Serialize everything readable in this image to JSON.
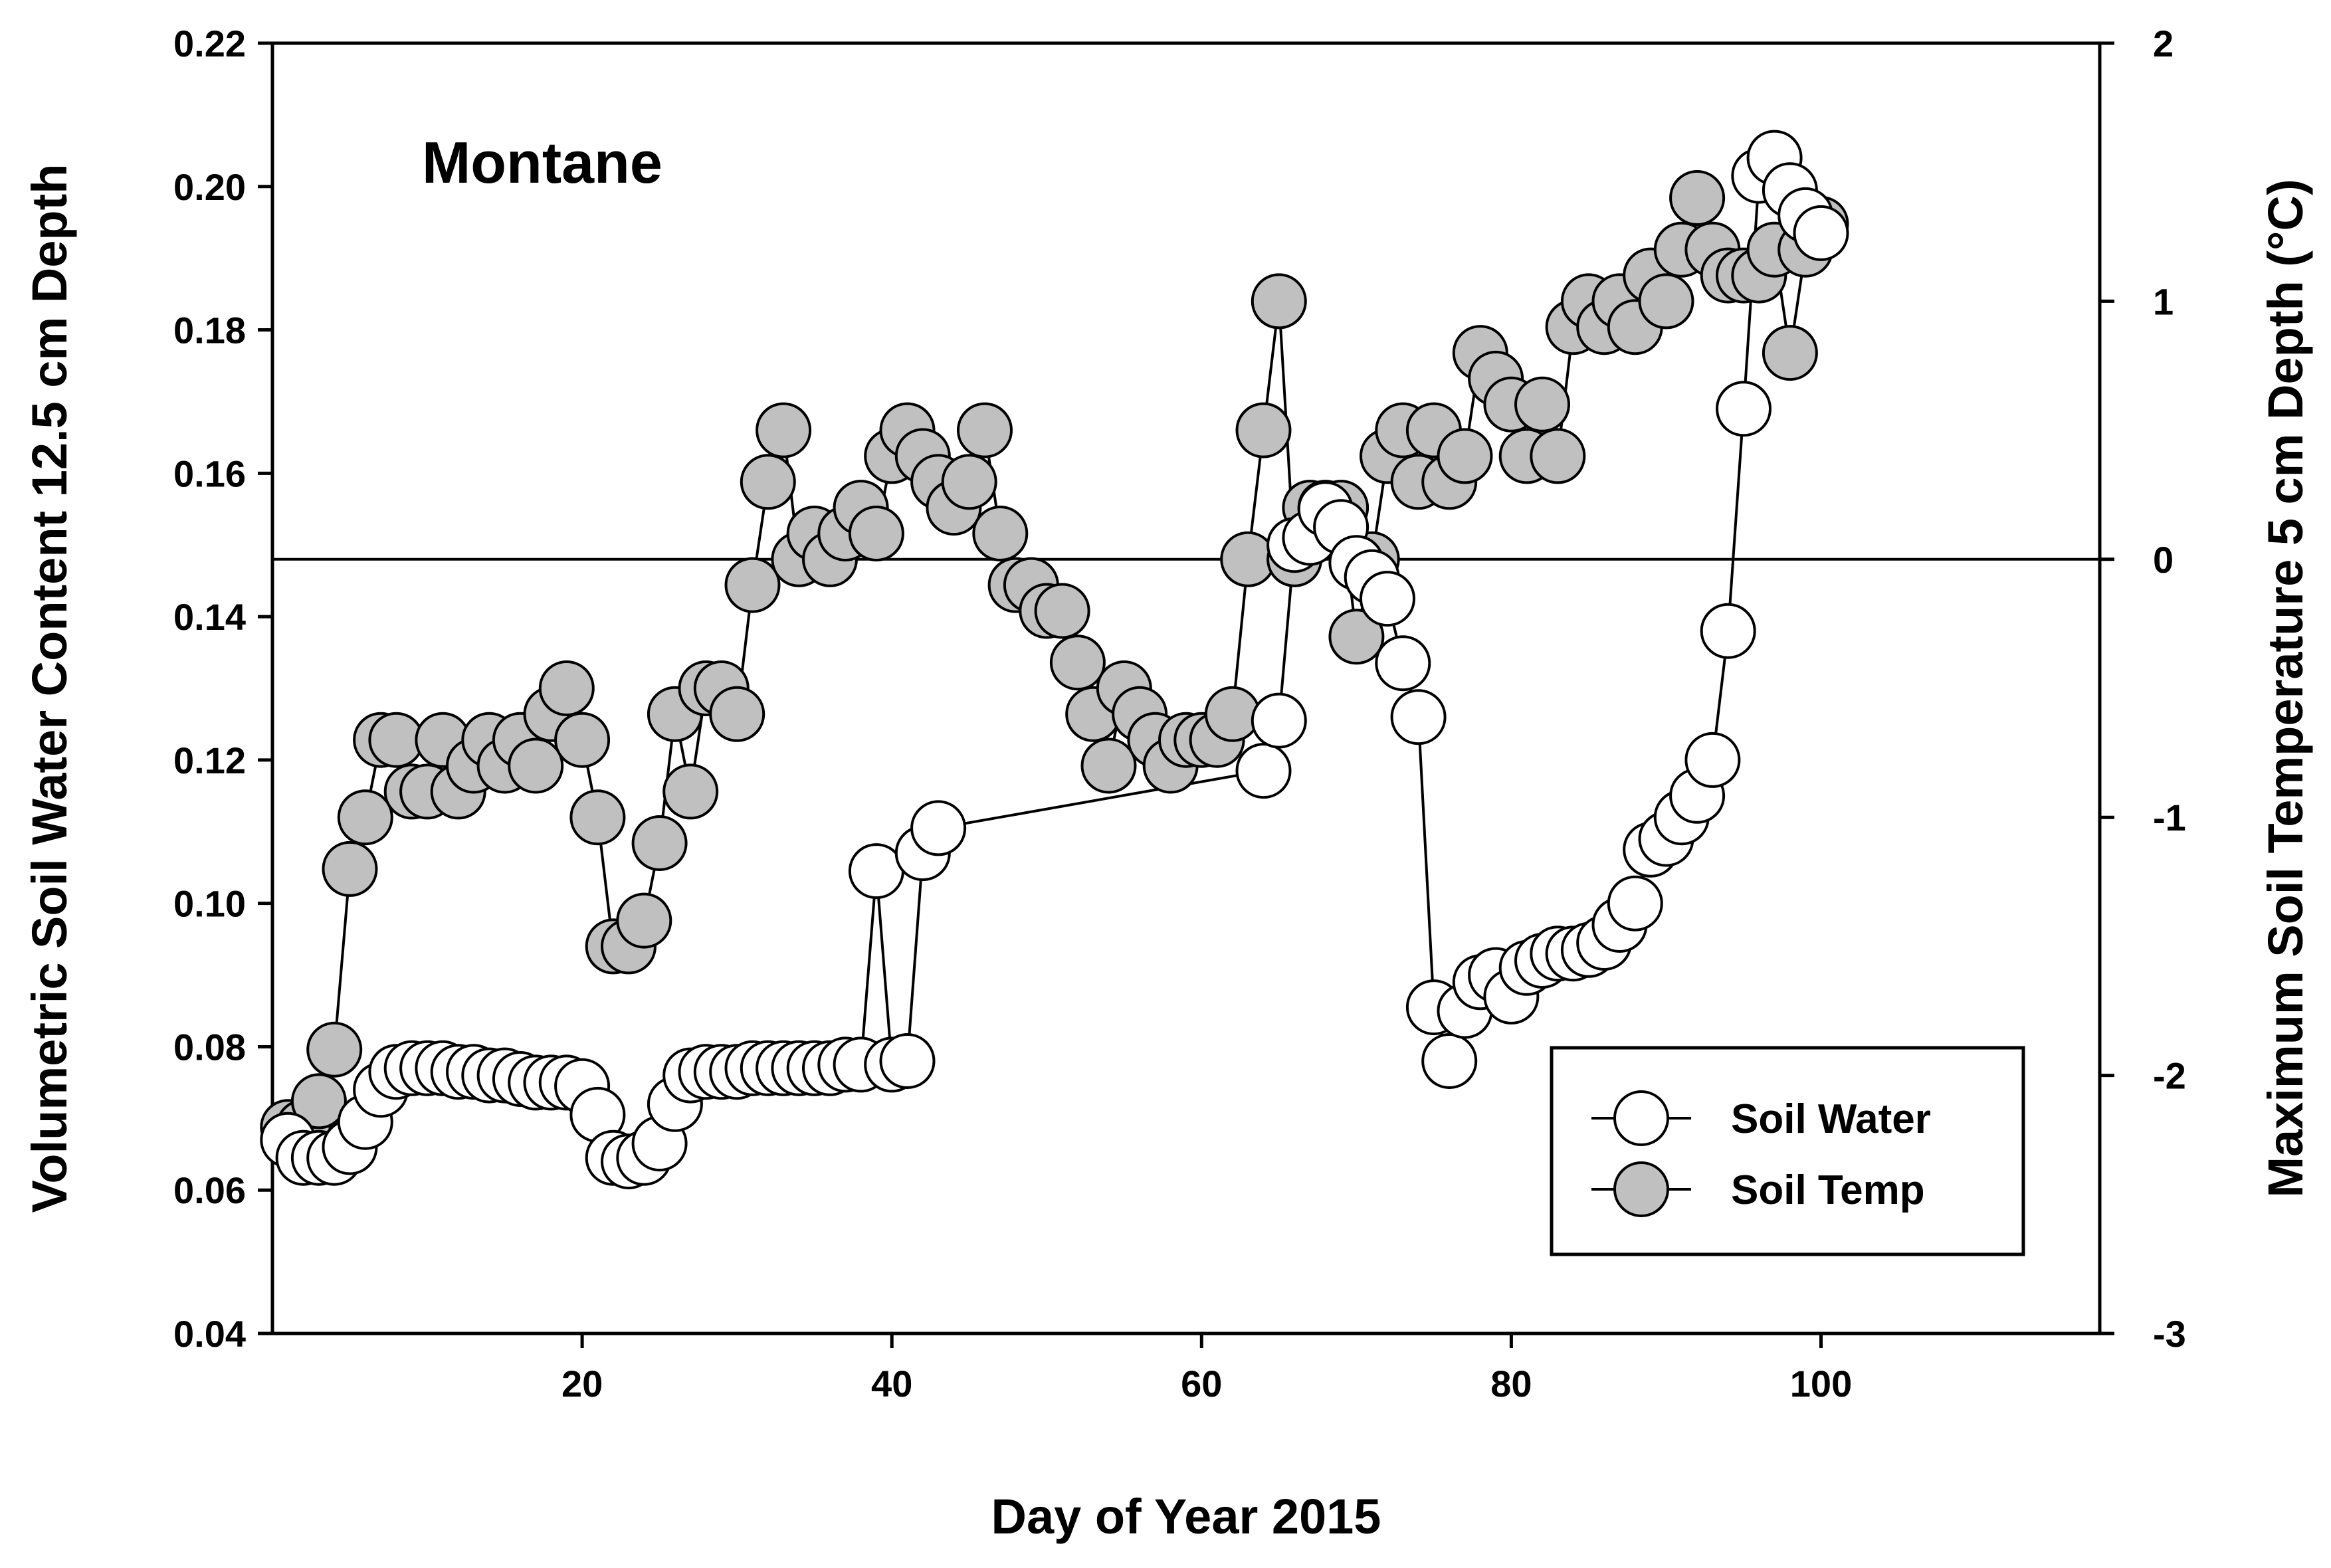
{
  "chart_data": {
    "type": "line",
    "panel_label": "Montane",
    "xlabel": "Day of Year 2015",
    "ylabel_left": "Volumetric Soil Water Content 12.5 cm Depth",
    "ylabel_right": "Maximum Soil Temperature 5 cm Depth (°C)",
    "xlim": [
      0,
      118
    ],
    "ylim_left": [
      0.04,
      0.22
    ],
    "ylim_right": [
      -3,
      2
    ],
    "x_ticks": [
      20,
      40,
      60,
      80,
      100
    ],
    "x_tick_labels": [
      "20",
      "40",
      "60",
      "80",
      "100"
    ],
    "y_left_ticks": [
      0.04,
      0.06,
      0.08,
      0.1,
      0.12,
      0.14,
      0.16,
      0.18,
      0.2,
      0.22
    ],
    "y_left_tick_labels": [
      "0.04",
      "0.06",
      "0.08",
      "0.10",
      "0.12",
      "0.14",
      "0.16",
      "0.18",
      "0.20",
      "0.22"
    ],
    "y_right_ticks": [
      -3,
      -2,
      -1,
      0,
      1,
      2
    ],
    "y_right_tick_labels": [
      "-3",
      "-2",
      "-1",
      "0",
      "1",
      "2"
    ],
    "reference_line": {
      "axis": "right",
      "value": 0
    },
    "legend_position": "bottom-right",
    "series": [
      {
        "name": "Soil Water",
        "axis": "left",
        "marker_fill": "#ffffff",
        "x": [
          1,
          2,
          3,
          4,
          5,
          6,
          7,
          8,
          9,
          10,
          11,
          12,
          13,
          14,
          15,
          16,
          17,
          18,
          19,
          20,
          21,
          22,
          23,
          24,
          25,
          26,
          27,
          28,
          29,
          30,
          31,
          32,
          33,
          34,
          35,
          36,
          37,
          38,
          39,
          40,
          41,
          42,
          43,
          64,
          65,
          66,
          67,
          68,
          69,
          70,
          71,
          72,
          73,
          74,
          75,
          76,
          77,
          78,
          79,
          80,
          81,
          82,
          83,
          84,
          85,
          86,
          87,
          88,
          89,
          90,
          91,
          92,
          93,
          94,
          95,
          96,
          97,
          98,
          99,
          100
        ],
        "values": [
          0.067,
          0.0645,
          0.0645,
          0.0645,
          0.066,
          0.0695,
          0.074,
          0.0765,
          0.077,
          0.077,
          0.077,
          0.0765,
          0.0765,
          0.076,
          0.076,
          0.0755,
          0.075,
          0.075,
          0.075,
          0.0745,
          0.0705,
          0.0645,
          0.064,
          0.0645,
          0.0665,
          0.072,
          0.076,
          0.0765,
          0.0765,
          0.0765,
          0.077,
          0.077,
          0.077,
          0.077,
          0.077,
          0.077,
          0.0775,
          0.0775,
          0.1045,
          0.0775,
          0.078,
          0.107,
          0.1105,
          0.1185,
          0.1255,
          0.15,
          0.151,
          0.155,
          0.1525,
          0.1475,
          0.1455,
          0.1425,
          0.1335,
          0.126,
          0.0855,
          0.078,
          0.085,
          0.089,
          0.09,
          0.087,
          0.091,
          0.092,
          0.093,
          0.093,
          0.0935,
          0.0945,
          0.097,
          0.1,
          0.1075,
          0.109,
          0.112,
          0.115,
          0.12,
          0.138,
          0.169,
          0.2015,
          0.204,
          0.1995,
          0.196,
          0.1935
        ]
      },
      {
        "name": "Soil Temp",
        "axis": "right",
        "marker_fill": "#c0c0c0",
        "x": [
          1,
          2,
          3,
          4,
          5,
          6,
          7,
          8,
          9,
          10,
          11,
          12,
          13,
          14,
          15,
          16,
          17,
          18,
          19,
          20,
          21,
          22,
          23,
          24,
          25,
          26,
          27,
          28,
          29,
          30,
          31,
          32,
          33,
          34,
          35,
          36,
          37,
          38,
          39,
          40,
          41,
          42,
          43,
          44,
          45,
          46,
          47,
          48,
          49,
          50,
          51,
          52,
          53,
          54,
          55,
          56,
          57,
          58,
          59,
          60,
          61,
          62,
          63,
          64,
          65,
          66,
          67,
          68,
          69,
          70,
          71,
          72,
          73,
          74,
          75,
          76,
          77,
          78,
          79,
          80,
          81,
          82,
          83,
          84,
          85,
          86,
          87,
          88,
          89,
          90,
          91,
          92,
          93,
          94,
          95,
          96,
          97,
          98,
          99,
          100
        ],
        "values": [
          -2.2,
          -2.2,
          -2.1,
          -1.9,
          -1.2,
          -1.0,
          -0.7,
          -0.7,
          -0.9,
          -0.9,
          -0.7,
          -0.9,
          -0.8,
          -0.7,
          -0.8,
          -0.7,
          -0.8,
          -0.6,
          -0.5,
          -0.7,
          -1.0,
          -1.5,
          -1.5,
          -1.4,
          -1.1,
          -0.6,
          -0.9,
          -0.5,
          -0.5,
          -0.6,
          -0.1,
          0.3,
          0.5,
          0.0,
          0.1,
          0.0,
          0.1,
          0.2,
          0.1,
          0.4,
          0.5,
          0.4,
          0.3,
          0.2,
          0.3,
          0.5,
          0.1,
          -0.1,
          -0.1,
          -0.2,
          -0.2,
          -0.4,
          -0.6,
          -0.8,
          -0.5,
          -0.6,
          -0.7,
          -0.8,
          -0.7,
          -0.7,
          -0.7,
          -0.6,
          0.0,
          0.5,
          1.0,
          0.0,
          0.2,
          0.2,
          0.2,
          -0.3,
          0.0,
          0.4,
          0.5,
          0.3,
          0.5,
          0.3,
          0.4,
          0.8,
          0.7,
          0.6,
          0.4,
          0.6,
          0.4,
          0.9,
          1.0,
          0.9,
          1.0,
          0.9,
          1.1,
          1.0,
          1.2,
          1.4,
          1.2,
          1.1,
          1.1,
          1.1,
          1.2,
          0.8,
          1.2,
          1.3
        ]
      }
    ]
  }
}
